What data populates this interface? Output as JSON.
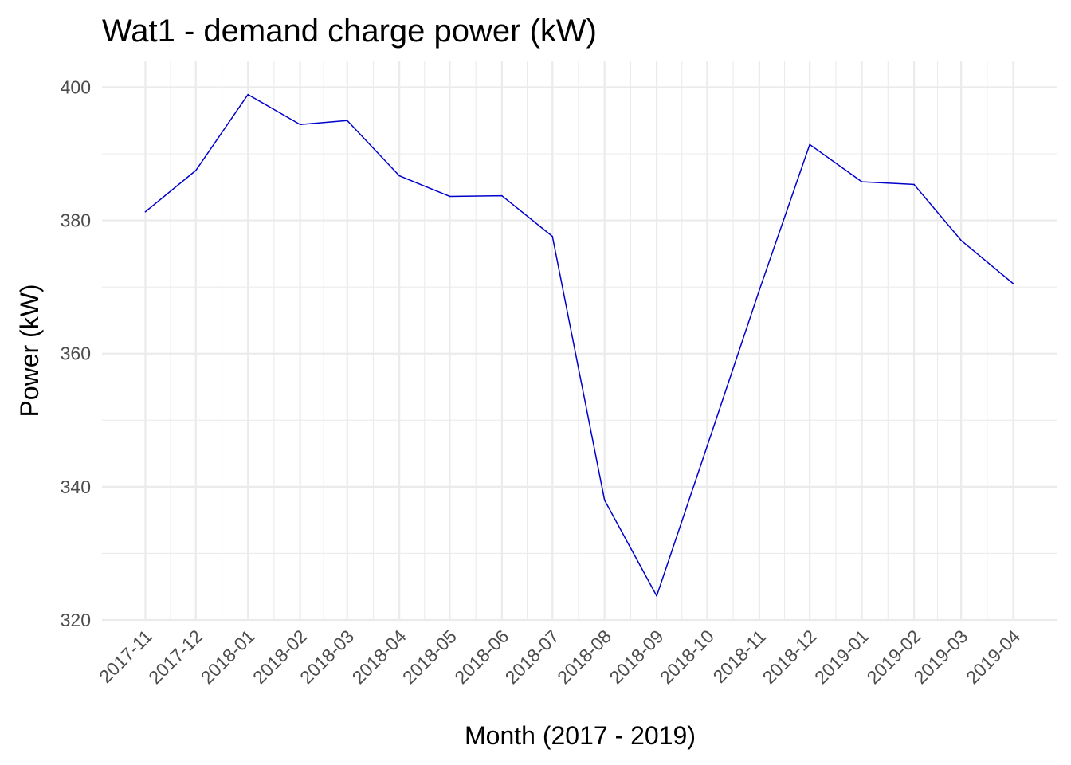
{
  "chart_data": {
    "type": "line",
    "title": "Wat1 - demand charge power (kW)",
    "xlabel": "Month (2017 - 2019)",
    "ylabel": "Power (kW)",
    "categories": [
      "2017-11",
      "2017-12",
      "2018-01",
      "2018-02",
      "2018-03",
      "2018-04",
      "2018-05",
      "2018-06",
      "2018-07",
      "2018-08",
      "2018-09",
      "2018-10",
      "2018-11",
      "2018-12",
      "2019-01",
      "2019-02",
      "2019-03",
      "2019-04"
    ],
    "x_dates": [
      "2017-11-01",
      "2017-12-01",
      "2018-01-01",
      "2018-02-01",
      "2018-03-01",
      "2018-04-01",
      "2018-05-01",
      "2018-06-01",
      "2018-07-01",
      "2018-08-01",
      "2018-09-01",
      "2018-10-01",
      "2018-11-01",
      "2018-12-01",
      "2019-01-01",
      "2019-02-01",
      "2019-03-01",
      "2019-04-01"
    ],
    "values": [
      381.3,
      387.5,
      398.9,
      394.4,
      395.0,
      386.7,
      383.6,
      383.7,
      377.6,
      338.0,
      323.6,
      346.1,
      369.5,
      391.4,
      385.8,
      385.4,
      377.0,
      370.5
    ],
    "ylim": [
      320,
      404
    ],
    "yticks": [
      320,
      340,
      360,
      380,
      400
    ],
    "line_color": "#0000cd",
    "grid": true,
    "grid_color": "#ebebeb",
    "legend": "none"
  }
}
